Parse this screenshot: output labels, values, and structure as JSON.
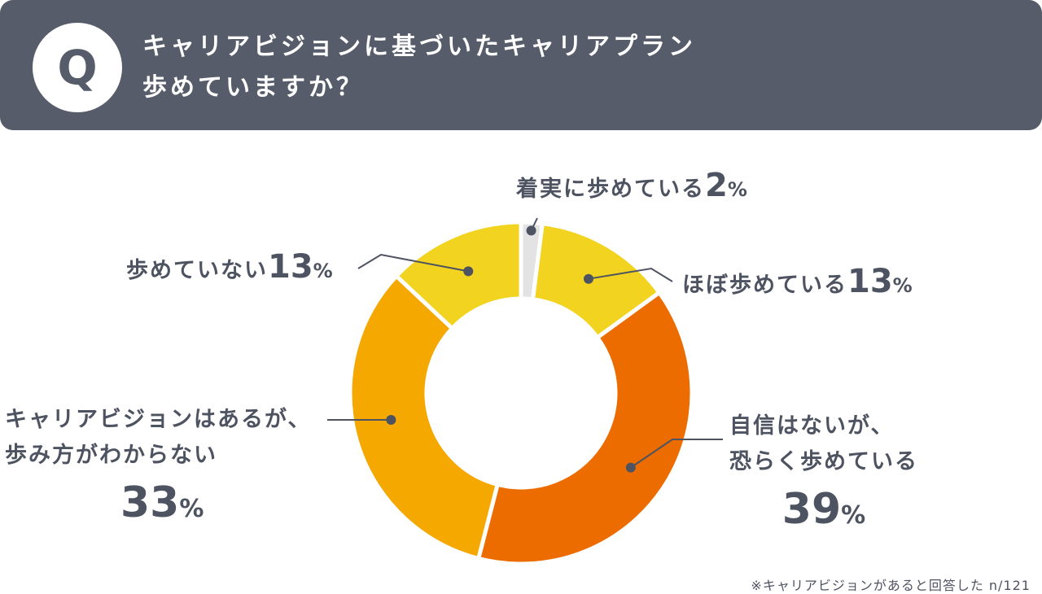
{
  "question": {
    "badge": "Q",
    "line1": "キャリアビジョンに基づいたキャリアプラン",
    "line2": "歩めていますか？"
  },
  "chart_data": {
    "type": "pie",
    "categories": [
      "着実に歩めている",
      "ほぼ歩めている",
      "自信はないが、恐らく歩めている",
      "キャリアビジョンはあるが、歩み方がわからない",
      "歩めていない"
    ],
    "values": [
      2,
      13,
      39,
      33,
      13
    ],
    "unit": "%",
    "colors": [
      "#e3e3e3",
      "#f1d320",
      "#ed6c00",
      "#f5a800",
      "#f1d320"
    ]
  },
  "labels": {
    "steady": {
      "text": "着実に歩めている",
      "num": "2",
      "unit": "%"
    },
    "mostly": {
      "text": "ほぼ歩めている",
      "num": "13",
      "unit": "%"
    },
    "unsure": {
      "line1": "自信はないが、",
      "line2": "恐らく歩めている",
      "num": "39",
      "unit": "%"
    },
    "no_way": {
      "line1": "キャリアビジョンはあるが、",
      "line2": "歩み方がわからない",
      "num": "33",
      "unit": "%"
    },
    "not": {
      "text": "歩めていない",
      "num": "13",
      "unit": "%"
    }
  },
  "footnote": "※キャリアビジョンがあると回答した n/121"
}
